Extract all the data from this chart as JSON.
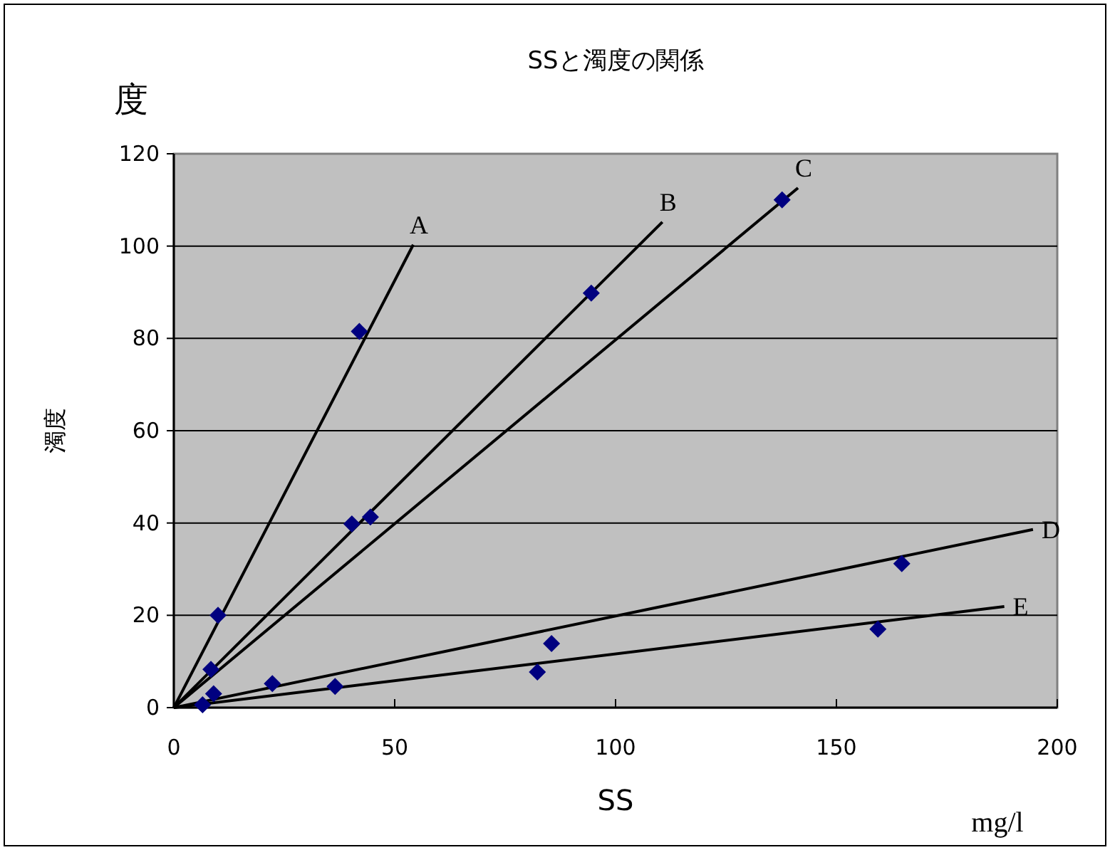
{
  "chart_data": {
    "type": "scatter",
    "title": "SSと濁度の関係",
    "xlabel": "SS",
    "ylabel": "濁度",
    "annotations": [
      "度",
      "mg/l"
    ],
    "xlim": [
      0,
      200
    ],
    "xticks": [
      0,
      50,
      100,
      150,
      200
    ],
    "ylim": [
      0,
      120
    ],
    "yticks": [
      0,
      20,
      40,
      60,
      80,
      100,
      120
    ],
    "grid": "y",
    "legend": false,
    "marker": "diamond",
    "series": [
      {
        "type": "scatter",
        "color": "#000080",
        "x": [
          10,
          42,
          40.3,
          44.5,
          94.5,
          137.7,
          164.8,
          159.4,
          85.5,
          82.3,
          22.3,
          36.5,
          8.4,
          9,
          6.5
        ],
        "values": [
          20,
          81.5,
          39.8,
          41.3,
          89.8,
          110,
          31.2,
          17,
          13.9,
          7.7,
          5.2,
          4.6,
          8.3,
          3,
          0.6
        ]
      },
      {
        "type": "line",
        "name": "A",
        "color": "#000000",
        "marker": "none",
        "x": [
          0,
          54.2
        ],
        "values": [
          0,
          100.3
        ]
      },
      {
        "type": "line",
        "name": "B",
        "color": "#000000",
        "marker": "none",
        "x": [
          0,
          110.6
        ],
        "values": [
          0,
          105.2
        ]
      },
      {
        "type": "line",
        "name": "C",
        "color": "#000000",
        "marker": "none",
        "x": [
          0,
          141.3
        ],
        "values": [
          0,
          112.6
        ]
      },
      {
        "type": "line",
        "name": "D",
        "color": "#000000",
        "marker": "none",
        "x": [
          0,
          194.5
        ],
        "values": [
          0,
          38.6
        ]
      },
      {
        "type": "line",
        "name": "E",
        "color": "#000000",
        "marker": "none",
        "x": [
          0,
          188
        ],
        "values": [
          0,
          21.9
        ]
      }
    ]
  }
}
